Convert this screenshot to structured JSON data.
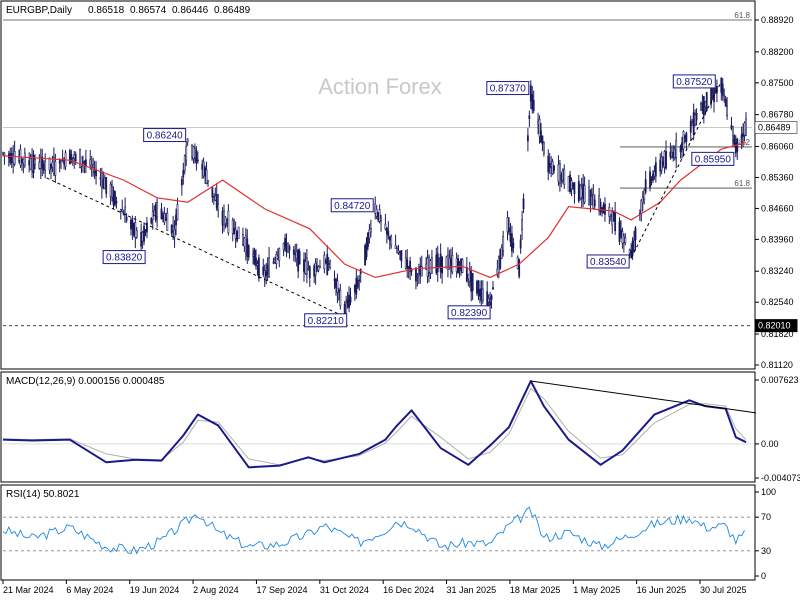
{
  "chart_data": [
    {
      "type": "line",
      "panel": "price",
      "title": "EURGBP,Daily",
      "ohlc_header": [
        "0.86518",
        "0.86574",
        "0.86446",
        "0.86489"
      ],
      "watermark": "Action Forex",
      "ylim": [
        0.8112,
        0.8892
      ],
      "y_ticks": [
        "0.88920",
        "0.88200",
        "0.87500",
        "0.86780",
        "0.86060",
        "0.85360",
        "0.84660",
        "0.83960",
        "0.83240",
        "0.82540",
        "0.81820",
        "0.81120"
      ],
      "current_price": "0.86489",
      "support_level": {
        "value": 0.8201,
        "label": "0.82010",
        "style": "dashed"
      },
      "fib_levels": [
        {
          "value": 0.8892,
          "label": "61.8"
        },
        {
          "value": 0.8605,
          "label": "38.2"
        },
        {
          "value": 0.8512,
          "label": "61.8"
        }
      ],
      "annotations": [
        {
          "date": "2024-07-26",
          "value": 0.8624,
          "label": "0.86240"
        },
        {
          "date": "2024-06-24",
          "value": 0.8382,
          "label": "0.83820"
        },
        {
          "date": "2024-12-02",
          "value": 0.8472,
          "label": "0.84720"
        },
        {
          "date": "2024-11-11",
          "value": 0.8221,
          "label": "0.82210"
        },
        {
          "date": "2025-03-19",
          "value": 0.8737,
          "label": "0.87370"
        },
        {
          "date": "2025-02-19",
          "value": 0.8239,
          "label": "0.82390"
        },
        {
          "date": "2025-05-27",
          "value": 0.8354,
          "label": "0.83540"
        },
        {
          "date": "2025-07-28",
          "value": 0.8752,
          "label": "0.87520"
        },
        {
          "date": "2025-08-07",
          "value": 0.8595,
          "label": "0.85950"
        }
      ],
      "series": [
        {
          "style": "candles",
          "x": [
            "2024-03-21",
            "2024-04-08",
            "2024-04-26",
            "2024-05-06",
            "2024-05-20",
            "2024-06-03",
            "2024-06-12",
            "2024-06-24",
            "2024-07-05",
            "2024-07-17",
            "2024-07-26",
            "2024-08-06",
            "2024-08-19",
            "2024-09-02",
            "2024-09-17",
            "2024-10-01",
            "2024-10-18",
            "2024-10-31",
            "2024-11-11",
            "2024-11-21",
            "2024-12-02",
            "2024-12-16",
            "2024-12-30",
            "2025-01-13",
            "2025-01-31",
            "2025-02-10",
            "2025-02-19",
            "2025-03-03",
            "2025-03-11",
            "2025-03-19",
            "2025-03-31",
            "2025-04-14",
            "2025-05-01",
            "2025-05-15",
            "2025-05-27",
            "2025-06-06",
            "2025-06-16",
            "2025-06-30",
            "2025-07-14",
            "2025-07-28",
            "2025-08-07",
            "2025-08-14"
          ],
          "values": [
            0.859,
            0.857,
            0.856,
            0.8585,
            0.8565,
            0.8505,
            0.8455,
            0.8395,
            0.8465,
            0.8415,
            0.8615,
            0.8555,
            0.8445,
            0.8395,
            0.8315,
            0.8385,
            0.8325,
            0.8345,
            0.8235,
            0.8305,
            0.8465,
            0.8375,
            0.8315,
            0.8345,
            0.8335,
            0.8285,
            0.8255,
            0.8425,
            0.8335,
            0.8725,
            0.8565,
            0.8525,
            0.8485,
            0.8445,
            0.8365,
            0.8515,
            0.8565,
            0.8605,
            0.8695,
            0.8745,
            0.8605,
            0.8649
          ]
        },
        {
          "name": "",
          "style": "moving-average",
          "color": "#e03030",
          "x": [
            "2024-03-21",
            "2024-05-06",
            "2024-06-12",
            "2024-07-05",
            "2024-07-26",
            "2024-08-19",
            "2024-09-17",
            "2024-10-18",
            "2024-11-11",
            "2024-12-02",
            "2024-12-30",
            "2025-01-31",
            "2025-02-19",
            "2025-03-11",
            "2025-03-31",
            "2025-04-14",
            "2025-05-15",
            "2025-05-27",
            "2025-06-16",
            "2025-06-30",
            "2025-07-28",
            "2025-08-14"
          ],
          "values": [
            0.8585,
            0.8575,
            0.853,
            0.849,
            0.848,
            0.853,
            0.8465,
            0.842,
            0.834,
            0.831,
            0.833,
            0.8335,
            0.831,
            0.834,
            0.84,
            0.847,
            0.846,
            0.844,
            0.848,
            0.853,
            0.86,
            0.8615
          ]
        }
      ],
      "trendlines": [
        {
          "from": {
            "date": "2024-04-20",
            "value": 0.8535
          },
          "to": {
            "date": "2024-11-11",
            "value": 0.8221
          },
          "style": "dotted"
        },
        {
          "from": {
            "date": "2025-05-27",
            "value": 0.8354
          },
          "to": {
            "date": "2025-07-28",
            "value": 0.8752
          },
          "style": "dotted"
        }
      ]
    },
    {
      "type": "line",
      "panel": "macd",
      "title": "MACD(12,26,9) 0.000156 0.000485",
      "ylim": [
        -0.004073,
        0.007623
      ],
      "y_ticks": [
        "0.007623",
        "0.00",
        "-0.004073"
      ],
      "series": [
        {
          "name": "",
          "color": "#1a1a8c",
          "x": [
            "2024-03-21",
            "2024-04-10",
            "2024-05-06",
            "2024-05-31",
            "2024-06-20",
            "2024-07-08",
            "2024-07-23",
            "2024-08-02",
            "2024-08-16",
            "2024-09-06",
            "2024-09-27",
            "2024-10-17",
            "2024-10-28",
            "2024-11-21",
            "2024-12-09",
            "2024-12-16",
            "2024-12-27",
            "2025-01-16",
            "2025-02-04",
            "2025-02-19",
            "2025-03-04",
            "2025-03-19",
            "2025-03-28",
            "2025-04-14",
            "2025-05-06",
            "2025-05-21",
            "2025-06-12",
            "2025-07-06",
            "2025-07-17",
            "2025-07-31",
            "2025-08-07",
            "2025-08-14"
          ],
          "values": [
            0.0005,
            0.0004,
            0.0005,
            -0.0022,
            -0.0019,
            -0.002,
            0.001,
            0.0035,
            0.0022,
            -0.0028,
            -0.0026,
            -0.0016,
            -0.0022,
            -0.0012,
            0.0005,
            0.002,
            0.004,
            -0.0005,
            -0.0025,
            -0.0002,
            0.002,
            0.0075,
            0.0045,
            0.0005,
            -0.0025,
            -0.0008,
            0.0035,
            0.0052,
            0.0045,
            0.0042,
            0.0008,
            0.0002
          ]
        },
        {
          "name": "",
          "color": "#b0b0b0",
          "x": [
            "2024-03-21",
            "2024-04-10",
            "2024-05-06",
            "2024-05-31",
            "2024-06-20",
            "2024-07-08",
            "2024-07-23",
            "2024-08-02",
            "2024-08-16",
            "2024-09-06",
            "2024-09-27",
            "2024-10-17",
            "2024-10-28",
            "2024-11-21",
            "2024-12-09",
            "2024-12-16",
            "2024-12-27",
            "2025-01-16",
            "2025-02-04",
            "2025-02-19",
            "2025-03-04",
            "2025-03-19",
            "2025-03-28",
            "2025-04-14",
            "2025-05-06",
            "2025-05-21",
            "2025-06-12",
            "2025-07-06",
            "2025-07-17",
            "2025-07-31",
            "2025-08-07",
            "2025-08-14"
          ],
          "values": [
            0.0006,
            0.0005,
            0.0006,
            -0.0012,
            -0.0018,
            -0.0019,
            0.0002,
            0.0028,
            0.0026,
            -0.0018,
            -0.0025,
            -0.0017,
            -0.002,
            -0.0014,
            0.0001,
            0.0013,
            0.0033,
            0.0008,
            -0.0018,
            -0.001,
            0.0012,
            0.0066,
            0.0054,
            0.0015,
            -0.0017,
            -0.0013,
            0.0025,
            0.0047,
            0.0048,
            0.0045,
            0.0018,
            0.0005
          ]
        }
      ],
      "trendlines": [
        {
          "from": {
            "date": "2025-03-19",
            "value": 0.0075
          },
          "to": {
            "date": "2025-08-14",
            "value": 0.0037
          },
          "style": "solid"
        }
      ]
    },
    {
      "type": "line",
      "panel": "rsi",
      "title": "RSI(14) 50.8021",
      "ylim": [
        0,
        100
      ],
      "y_ticks": [
        "100",
        "70",
        "30",
        "0"
      ],
      "levels": [
        70,
        30
      ],
      "series": [
        {
          "name": "",
          "color": "#1e88e5",
          "x": [
            "2024-03-21",
            "2024-04-10",
            "2024-05-06",
            "2024-05-31",
            "2024-06-20",
            "2024-07-08",
            "2024-07-23",
            "2024-08-02",
            "2024-08-16",
            "2024-09-06",
            "2024-09-27",
            "2024-10-17",
            "2024-10-28",
            "2024-11-21",
            "2024-12-09",
            "2024-12-16",
            "2024-12-27",
            "2025-01-16",
            "2025-02-04",
            "2025-02-19",
            "2025-03-04",
            "2025-03-19",
            "2025-03-28",
            "2025-04-14",
            "2025-05-06",
            "2025-05-21",
            "2025-06-12",
            "2025-07-06",
            "2025-07-17",
            "2025-07-31",
            "2025-08-07",
            "2025-08-14"
          ],
          "values": [
            55,
            45,
            58,
            35,
            30,
            42,
            62,
            75,
            52,
            35,
            38,
            50,
            60,
            40,
            55,
            65,
            62,
            35,
            40,
            38,
            60,
            78,
            45,
            52,
            35,
            45,
            62,
            70,
            58,
            60,
            42,
            51
          ]
        }
      ]
    }
  ],
  "x_axis_labels": [
    "21 Mar 2024",
    "6 May 2024",
    "19 Jun 2024",
    "2 Aug 2024",
    "17 Sep 2024",
    "31 Oct 2024",
    "16 Dec 2024",
    "31 Jan 2025",
    "18 Mar 2025",
    "1 May 2025",
    "16 Jun 2025",
    "30 Jul 2025"
  ],
  "colors": {
    "candles": "#1a1a5e",
    "ma": "#e03030",
    "macd": "#1a1a8c",
    "signal": "#b0b0b0",
    "rsi": "#1e88e5",
    "label_border": "#1a1a8c"
  }
}
